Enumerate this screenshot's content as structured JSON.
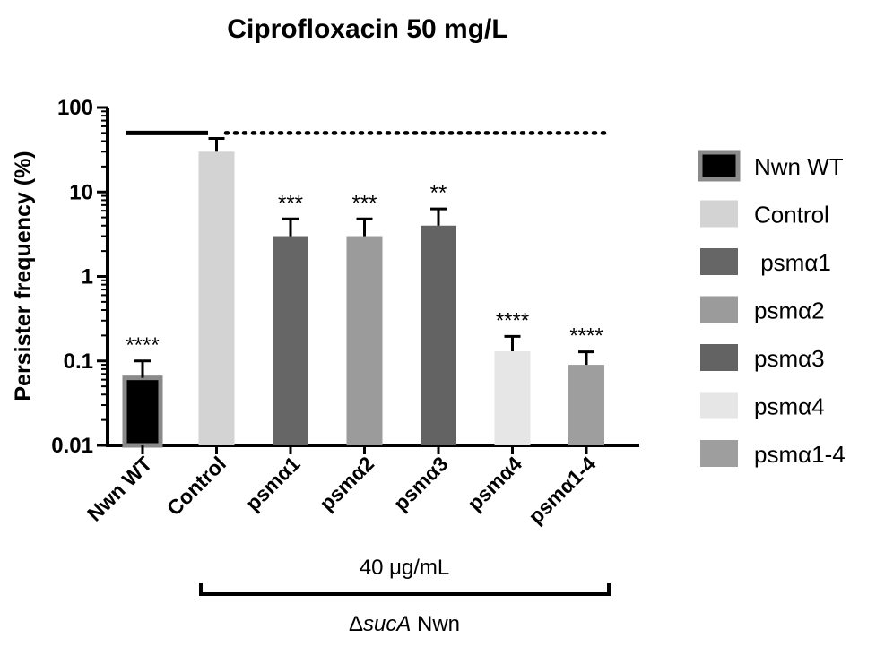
{
  "chart_data": {
    "type": "bar",
    "title": "Ciprofloxacin 50 mg/L",
    "ylabel": "Persister frequency (%)",
    "xlabel": "",
    "yscale": "log",
    "ylim": [
      0.01,
      100
    ],
    "yticks": [
      "0.01",
      "0.1",
      "1",
      "10",
      "100"
    ],
    "categories": [
      "Nwn WT",
      "Control",
      "psmα1",
      "psmα2",
      "psmα3",
      "psmα4",
      "psmα1-4"
    ],
    "values": [
      0.063,
      30,
      3,
      3,
      4,
      0.13,
      0.09
    ],
    "error_upper": [
      0.1,
      43,
      4.8,
      4.8,
      6.3,
      0.195,
      0.128
    ],
    "significance": [
      "****",
      "",
      "***",
      "***",
      "**",
      "****",
      "****"
    ],
    "colors": [
      "#000000",
      "#d3d3d3",
      "#666666",
      "#9b9b9b",
      "#636363",
      "#e6e6e6",
      "#9e9e9e"
    ],
    "legend": {
      "position": "right",
      "entries": [
        "Nwn WT",
        "Control",
        " psmα1",
        "psmα2",
        "psmα3",
        "psmα4",
        "psmα1-4"
      ]
    },
    "reference_level": 50,
    "group_annotation": {
      "dose": "40 μg/mL",
      "strain_prefix": "Δ",
      "strain_gene": "sucA",
      "strain_suffix": " Nwn"
    }
  }
}
